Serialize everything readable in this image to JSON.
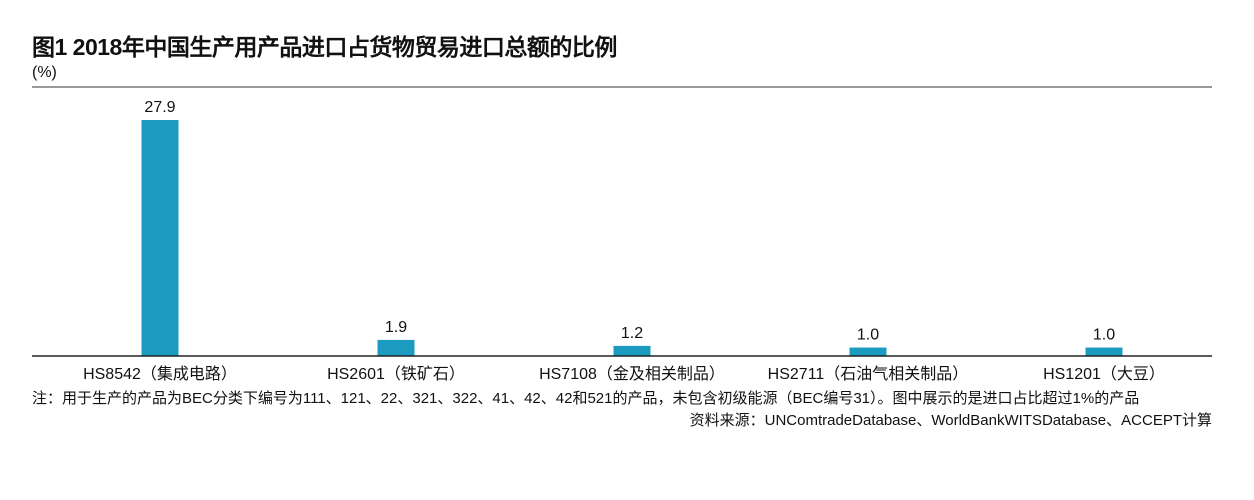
{
  "chart_data": {
    "type": "bar",
    "title": "图1 2018年中国生产用产品进口占货物贸易进口总额的比例",
    "ylabel": "(%)",
    "xlabel": "",
    "categories": [
      "HS8542（集成电路）",
      "HS2601（铁矿石）",
      "HS7108（金及相关制品）",
      "HS2711（石油气相关制品）",
      "HS1201（大豆）"
    ],
    "values": [
      27.9,
      1.9,
      1.2,
      1.0,
      1.0
    ],
    "value_labels": [
      "27.9",
      "1.9",
      "1.2",
      "1.0",
      "1.0"
    ],
    "ylim": [
      0,
      31.8
    ],
    "grid": false,
    "bar_color": "#1a9bbf"
  },
  "note": "注：用于生产的产品为BEC分类下编号为111、121、22、321、322、41、42、42和521的产品，未包含初级能源（BEC编号31）。图中展示的是进口占比超过1%的产品",
  "source": "资料来源：UNComtradeDatabase、WorldBankWITSDatabase、ACCEPT计算"
}
